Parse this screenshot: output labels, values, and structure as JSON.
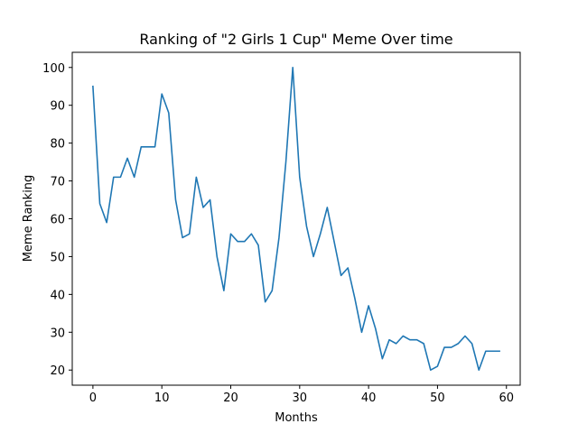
{
  "chart_data": {
    "type": "line",
    "title": "Ranking of \"2 Girls 1 Cup\" Meme Over time",
    "xlabel": "Months",
    "ylabel": "Meme Ranking",
    "xlim": [
      -3,
      62
    ],
    "ylim": [
      16,
      104
    ],
    "grid": false,
    "line_color": "#1f77b4",
    "x_ticks": [
      0,
      10,
      20,
      30,
      40,
      50,
      60
    ],
    "y_ticks": [
      20,
      30,
      40,
      50,
      60,
      70,
      80,
      90,
      100
    ],
    "series": [
      {
        "x": [
          0,
          1,
          2,
          3,
          4,
          5,
          6,
          7,
          8,
          9,
          10,
          11,
          12,
          13,
          14,
          15,
          16,
          17,
          18,
          19,
          20,
          21,
          22,
          23,
          24,
          25,
          26,
          27,
          28,
          29,
          30,
          31,
          32,
          33,
          34,
          35,
          36,
          37,
          38,
          39,
          40,
          41,
          42,
          43,
          44,
          45,
          46,
          47,
          48,
          49,
          50,
          51,
          52,
          53,
          54,
          55,
          56,
          57,
          58,
          59
        ],
        "values": [
          95,
          64,
          59,
          71,
          71,
          76,
          71,
          79,
          79,
          79,
          93,
          88,
          65,
          55,
          56,
          71,
          63,
          65,
          50,
          41,
          56,
          54,
          54,
          56,
          53,
          38,
          41,
          55,
          75,
          100,
          71,
          58,
          50,
          56,
          63,
          54,
          45,
          47,
          39,
          30,
          37,
          31,
          23,
          28,
          27,
          29,
          28,
          28,
          27,
          20,
          21,
          26,
          26,
          27,
          29,
          27,
          20,
          25,
          25,
          25
        ]
      }
    ]
  }
}
